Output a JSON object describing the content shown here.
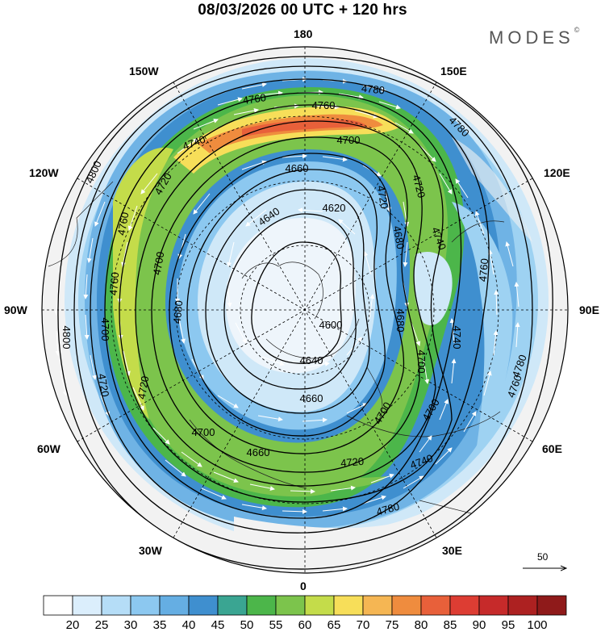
{
  "title": "08/03/2026  00 UTC  + 120 hrs",
  "brand": {
    "name": "MODES",
    "mark": "©"
  },
  "longitude_labels": {
    "top": "180",
    "top_left": "150W",
    "top_right": "150E",
    "upper_left": "120W",
    "upper_right": "120E",
    "left": "90W",
    "right": "90E",
    "lower_left": "60W",
    "lower_right": "60E",
    "bottom_left": "30W",
    "bottom_right": "30E",
    "bottom": "0"
  },
  "contour_labels": [
    "4760",
    "4780",
    "4760",
    "4740",
    "4700",
    "4780",
    "4660",
    "4720",
    "4800",
    "4720",
    "4640",
    "4620",
    "4680",
    "4760",
    "4720",
    "4700",
    "4600",
    "4740",
    "4680",
    "4640",
    "4760",
    "4760",
    "4660",
    "4680",
    "4700",
    "4700",
    "4740",
    "4720",
    "4720",
    "4700",
    "4700",
    "4760",
    "4740",
    "4720",
    "4800",
    "4780",
    "4780",
    "4660",
    "4700"
  ],
  "reference_vector": {
    "label": "50"
  },
  "colorbar": {
    "labels": [
      "20",
      "25",
      "30",
      "35",
      "40",
      "45",
      "50",
      "55",
      "60",
      "65",
      "70",
      "75",
      "80",
      "85",
      "90",
      "95",
      "100"
    ],
    "colors": [
      "#ffffff",
      "#dbeefc",
      "#b5ddf7",
      "#8cc8f0",
      "#65aee3",
      "#3f8fcf",
      "#3aa592",
      "#4cb64a",
      "#7cc44c",
      "#c4dc4a",
      "#f7de59",
      "#f5b653",
      "#ef8c3e",
      "#e8603a",
      "#dd3d33",
      "#c62a2a",
      "#ad2121",
      "#8f1a1a"
    ]
  }
}
